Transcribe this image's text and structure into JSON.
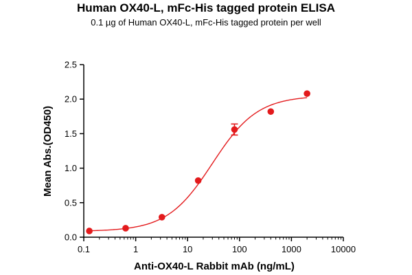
{
  "chart_data": {
    "type": "scatter",
    "title": "Human OX40-L, mFc-His tagged protein ELISA",
    "subtitle": "0.1 µg of Human OX40-L, mFc-His tagged protein per well",
    "xlabel": "Anti-OX40-L Rabbit mAb (ng/mL)",
    "ylabel": "Mean Abs.(OD450)",
    "xscale": "log",
    "xlim": [
      0.1,
      10000
    ],
    "ylim": [
      0,
      2.5
    ],
    "xticks": [
      "0.1",
      "1",
      "10",
      "100",
      "1000",
      "10000"
    ],
    "yticks": [
      "0.0",
      "0.5",
      "1.0",
      "1.5",
      "2.0",
      "2.5"
    ],
    "grid": false,
    "color": "#e31a1c",
    "points": [
      {
        "x": 0.128,
        "y": 0.09,
        "err": 0.0
      },
      {
        "x": 0.64,
        "y": 0.13,
        "err": 0.0
      },
      {
        "x": 3.2,
        "y": 0.29,
        "err": 0.0
      },
      {
        "x": 16,
        "y": 0.82,
        "err": 0.0
      },
      {
        "x": 80,
        "y": 1.56,
        "err": 0.08
      },
      {
        "x": 400,
        "y": 1.82,
        "err": 0.0
      },
      {
        "x": 2000,
        "y": 2.08,
        "err": 0.0
      }
    ],
    "fit": {
      "bottom": 0.085,
      "top": 2.05,
      "ec50": 30,
      "hill": 1.0
    }
  }
}
